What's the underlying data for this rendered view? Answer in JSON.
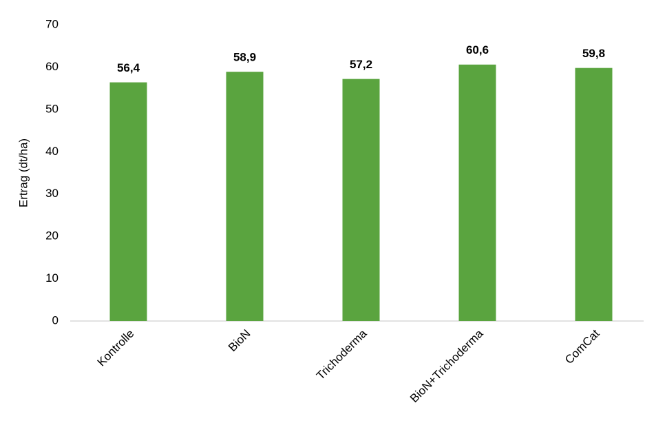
{
  "chart_data": {
    "type": "bar",
    "y_label": "Ertrag (dt/ha)",
    "categories": [
      "Kontrolle",
      "BioN",
      "Trichoderma",
      "BioN+Trichoderma",
      "ComCat"
    ],
    "values": [
      56.4,
      58.9,
      57.2,
      60.6,
      59.8
    ],
    "value_labels": [
      "56,4",
      "58,9",
      "57,2",
      "60,6",
      "59,8"
    ],
    "color": "#5aa43f",
    "ylim": [
      0,
      70
    ],
    "yticks": [
      0,
      10,
      20,
      30,
      40,
      50,
      60,
      70
    ],
    "grid": false
  }
}
